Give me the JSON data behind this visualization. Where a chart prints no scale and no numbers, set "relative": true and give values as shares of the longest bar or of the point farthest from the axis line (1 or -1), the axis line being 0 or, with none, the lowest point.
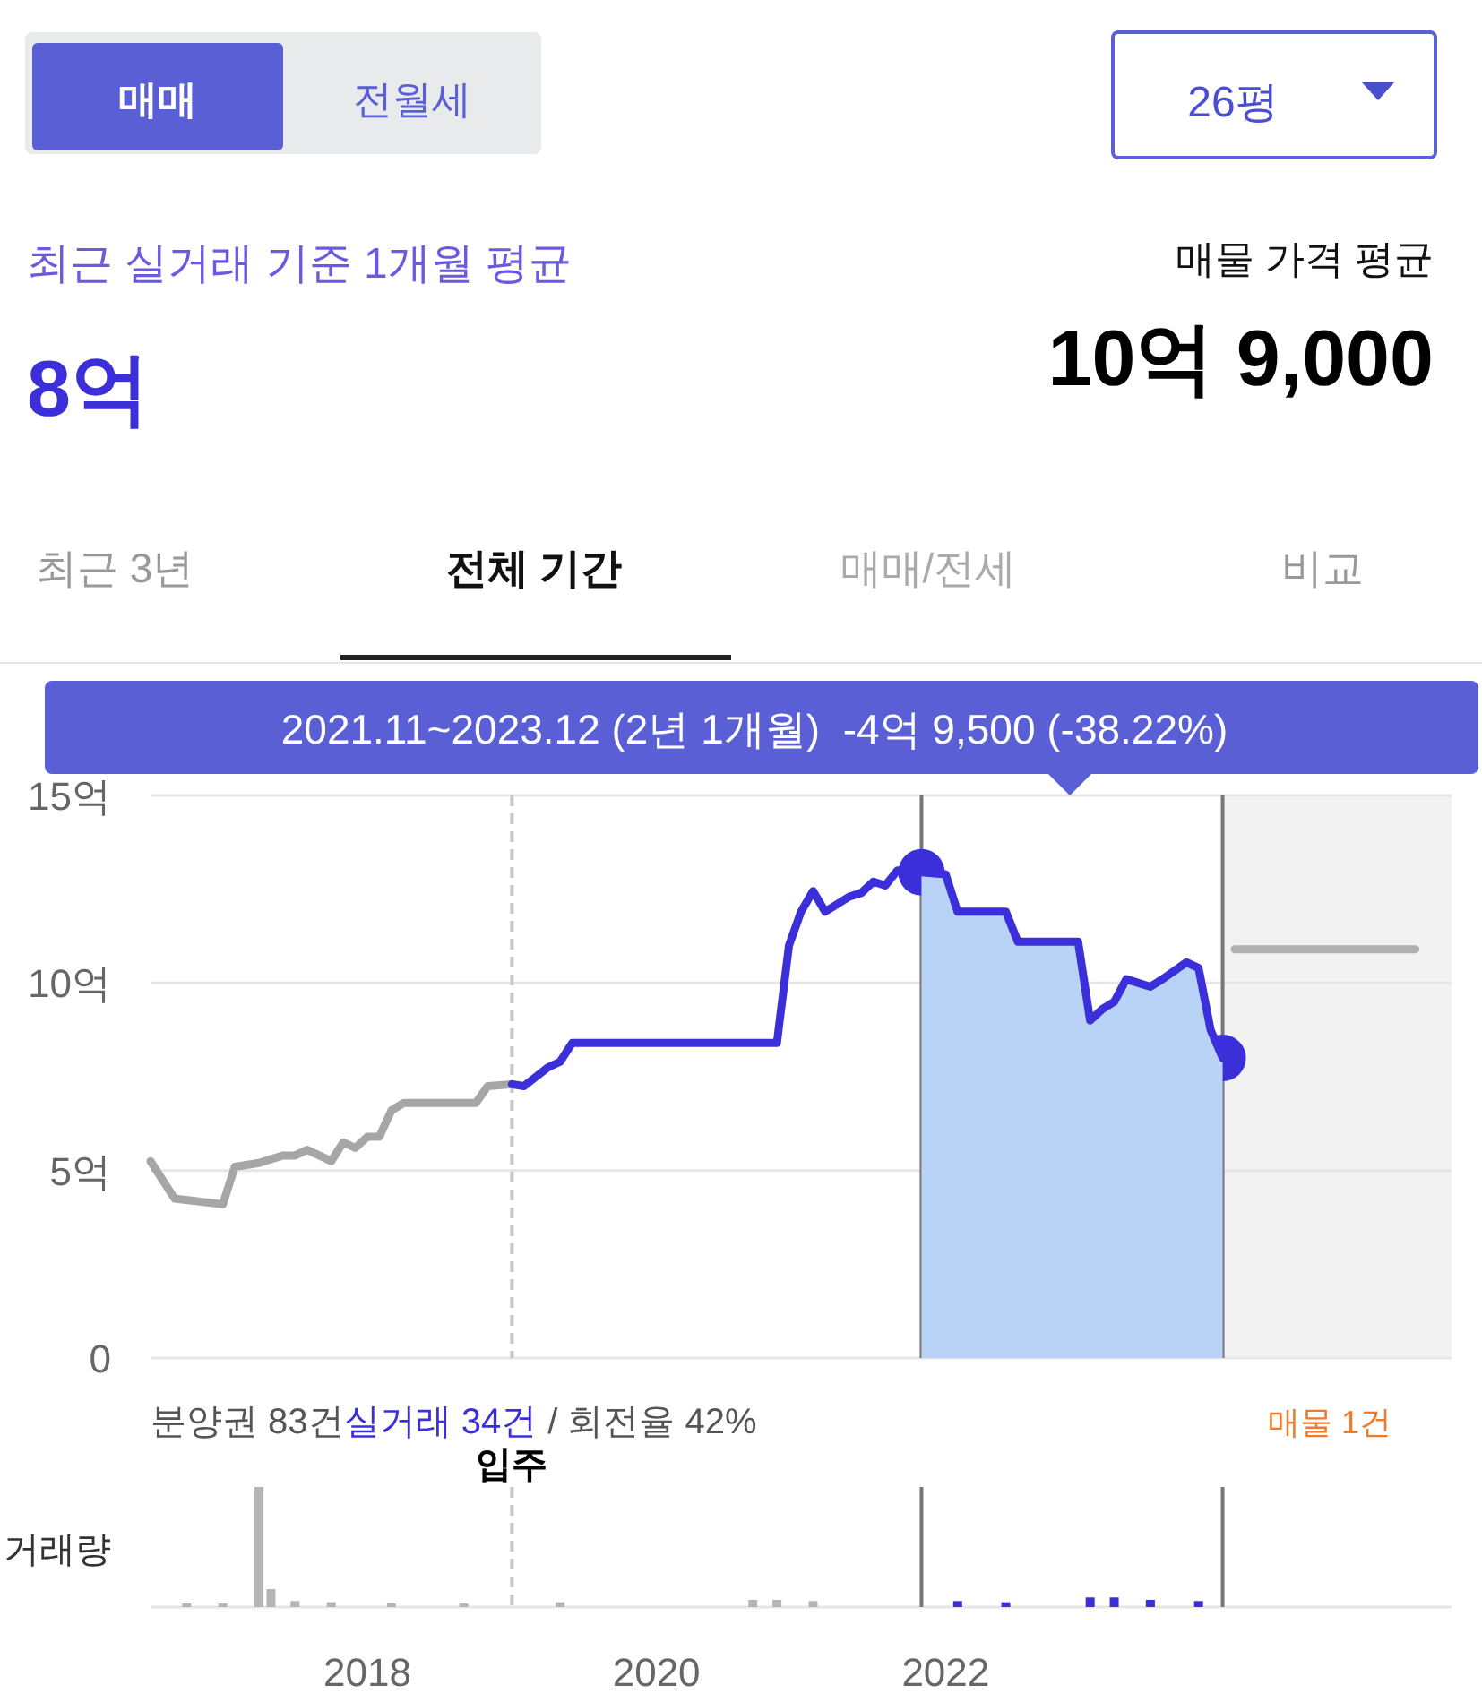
{
  "chart_data": [
    {
      "type": "other",
      "annotations": [
        "매매",
        "전월세",
        "26평",
        "최근 실거래 기준 1개월 평균",
        "8억",
        "매물 가격 평균",
        "10억 9,000",
        "최근 3년",
        "전체 기간",
        "매매/전세",
        "비교"
      ]
    },
    {
      "type": "line",
      "xlim": [
        "2016-07",
        "2025-07"
      ],
      "ylim": [
        0,
        15
      ],
      "yticks": [
        0,
        {
          "value": 5,
          "label": "5억"
        },
        {
          "value": 10,
          "label": "10억"
        },
        {
          "value": 15,
          "label": "15억"
        }
      ],
      "grid": "y",
      "tick_labels": "y",
      "series": [
        {
          "color": "#a6a6a6",
          "x": [
            "2016-07",
            "2016-09",
            "2017-01",
            "2017-02",
            "2017-04",
            "2017-06",
            "2017-07",
            "2017-08",
            "2017-10",
            "2017-11",
            "2017-12",
            "2018-01",
            "2018-02",
            "2018-03",
            "2018-04",
            "2018-10",
            "2018-11",
            "2019-01"
          ],
          "values": [
            5.25,
            4.25,
            4.1,
            5.1,
            5.2,
            5.4,
            5.4,
            5.55,
            5.25,
            5.75,
            5.6,
            5.9,
            5.9,
            6.6,
            6.8,
            6.8,
            7.25,
            7.3
          ]
        },
        {
          "type": "scatter",
          "color": "#3b2fd9",
          "x": [
            "2021-11",
            "2023-12"
          ],
          "values": [
            12.95,
            8.0
          ]
        },
        {
          "type": "area",
          "color": "#b9d3f7",
          "x": [
            "2021-11",
            "2022-01",
            "2022-02",
            "2022-06",
            "2022-07",
            "2022-12",
            "2023-01",
            "2023-02",
            "2023-03",
            "2023-04",
            "2023-06",
            "2023-07",
            "2023-09",
            "2023-10",
            "2023-11",
            "2023-12"
          ],
          "values": [
            12.95,
            12.9,
            11.9,
            11.9,
            11.1,
            11.1,
            9.0,
            9.3,
            9.5,
            10.1,
            9.9,
            10.1,
            10.55,
            10.4,
            8.75,
            8.0
          ]
        },
        {
          "color": "#3b2fd9",
          "x": [
            "2019-01",
            "2019-02",
            "2019-04",
            "2019-05",
            "2019-06",
            "2020-11",
            "2020-12",
            "2021-01",
            "2021-02",
            "2021-03",
            "2021-05",
            "2021-06",
            "2021-07",
            "2021-08",
            "2021-09",
            "2021-11",
            "2022-01",
            "2022-02",
            "2022-06",
            "2022-07",
            "2022-12",
            "2023-01",
            "2023-02",
            "2023-03",
            "2023-04",
            "2023-06",
            "2023-07",
            "2023-09",
            "2023-10",
            "2023-11",
            "2023-12"
          ],
          "values": [
            7.3,
            7.25,
            7.75,
            7.9,
            8.4,
            8.4,
            11.0,
            11.9,
            12.45,
            11.9,
            12.3,
            12.4,
            12.7,
            12.6,
            13.0,
            12.95,
            12.9,
            11.9,
            11.9,
            11.1,
            11.1,
            9.0,
            9.3,
            9.5,
            10.1,
            9.9,
            10.1,
            10.55,
            10.4,
            8.75,
            8.0
          ]
        },
        {
          "color": "#b0b0b0",
          "x": [
            "2024-01",
            "2025-04"
          ],
          "values": [
            10.9,
            10.9
          ]
        }
      ],
      "ref_lines": [
        {
          "axis": "x",
          "value": "2019-01",
          "label": "입주",
          "color": "#c8c8c8",
          "line_style": "dashed"
        },
        {
          "axis": "x",
          "value": "2021-11",
          "color": "#777777"
        },
        {
          "axis": "x",
          "value": "2023-12",
          "color": "#777777"
        }
      ],
      "bands": [
        {
          "axis": "x",
          "from": "2023-12",
          "to": "2025-07",
          "color": "#f2f2f2"
        }
      ],
      "annotations": [
        "2021.11~2023.12 (2년 1개월)  -4억 9,500 (-38.22%)",
        "분양권 83건",
        "실거래 34건",
        "/ 회전율 42%",
        "매물 1건"
      ]
    },
    {
      "type": "bar",
      "relative": true,
      "ylabel": "거래량",
      "xlim": [
        "2016-07",
        "2025-07"
      ],
      "xticks": [
        "2018",
        "2020",
        "2022"
      ],
      "tick_labels": "x",
      "x": [
        "2016-10",
        "2017-01",
        "2017-04",
        "2017-05",
        "2017-07",
        "2017-10",
        "2018-03",
        "2018-09",
        "2019-05",
        "2020-09",
        "2020-11",
        "2021-02",
        "2022-02",
        "2022-06",
        "2023-01",
        "2023-03",
        "2023-06",
        "2023-10"
      ],
      "values": [
        0.03,
        0.03,
        1,
        0.15,
        0.05,
        0.04,
        0.03,
        0.03,
        0.04,
        0.06,
        0.06,
        0.05,
        0.05,
        0.04,
        0.08,
        0.08,
        0.06,
        0.05
      ],
      "colors": [
        "#b5b5b5",
        "#b5b5b5",
        "#b5b5b5",
        "#b5b5b5",
        "#b5b5b5",
        "#b5b5b5",
        "#b5b5b5",
        "#b5b5b5",
        "#b5b5b5",
        "#b5b5b5",
        "#b5b5b5",
        "#b5b5b5",
        "#3b2fd9",
        "#3b2fd9",
        "#3b2fd9",
        "#3b2fd9",
        "#3b2fd9",
        "#3b2fd9"
      ],
      "ref_lines": [
        {
          "axis": "x",
          "value": "2019-01",
          "color": "#c8c8c8",
          "line_style": "dashed"
        },
        {
          "axis": "x",
          "value": "2021-11",
          "color": "#777777"
        },
        {
          "axis": "x",
          "value": "2023-12",
          "color": "#777777"
        }
      ]
    }
  ]
}
